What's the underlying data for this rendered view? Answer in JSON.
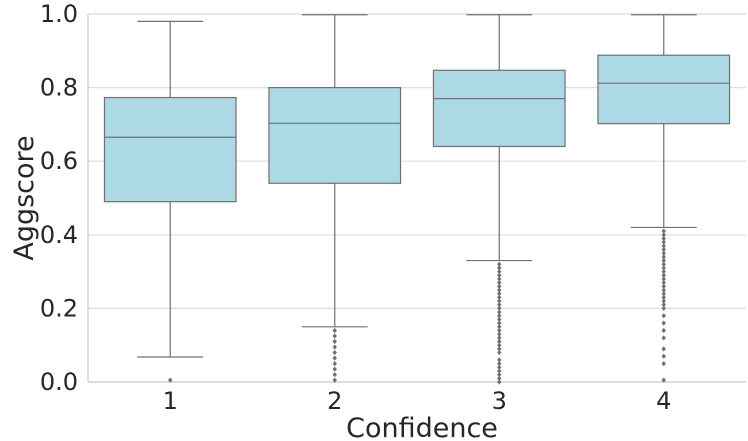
{
  "chart_data": {
    "type": "box",
    "xlabel": "Confidence",
    "ylabel": "Aggscore",
    "ylim": [
      0.0,
      1.0
    ],
    "yticks": [
      "0.0",
      "0.2",
      "0.4",
      "0.6",
      "0.8",
      "1.0"
    ],
    "grid": "horizontal",
    "box_color": "#add8e6",
    "line_color": "#707070",
    "categories": [
      "1",
      "2",
      "3",
      "4"
    ],
    "boxes": [
      {
        "category": "1",
        "whisker_low": 0.068,
        "q1": 0.49,
        "median": 0.665,
        "q3": 0.773,
        "whisker_high": 0.98,
        "outliers": [
          0.005
        ]
      },
      {
        "category": "2",
        "whisker_low": 0.15,
        "q1": 0.54,
        "median": 0.703,
        "q3": 0.8,
        "whisker_high": 0.998,
        "outliers": [
          0.005,
          0.02,
          0.035,
          0.05,
          0.065,
          0.08,
          0.095,
          0.11,
          0.125,
          0.14
        ]
      },
      {
        "category": "3",
        "whisker_low": 0.33,
        "q1": 0.64,
        "median": 0.77,
        "q3": 0.847,
        "whisker_high": 0.998,
        "outliers": [
          0.0,
          0.01,
          0.02,
          0.03,
          0.04,
          0.05,
          0.06,
          0.08,
          0.09,
          0.1,
          0.11,
          0.12,
          0.13,
          0.14,
          0.15,
          0.16,
          0.17,
          0.18,
          0.19,
          0.2,
          0.21,
          0.22,
          0.23,
          0.24,
          0.25,
          0.26,
          0.27,
          0.28,
          0.29,
          0.3,
          0.31,
          0.32
        ]
      },
      {
        "category": "4",
        "whisker_low": 0.42,
        "q1": 0.702,
        "median": 0.812,
        "q3": 0.888,
        "whisker_high": 0.998,
        "outliers": [
          0.005,
          0.05,
          0.07,
          0.09,
          0.12,
          0.14,
          0.16,
          0.18,
          0.2,
          0.21,
          0.22,
          0.23,
          0.24,
          0.25,
          0.26,
          0.27,
          0.28,
          0.29,
          0.3,
          0.31,
          0.32,
          0.33,
          0.34,
          0.35,
          0.36,
          0.37,
          0.38,
          0.39,
          0.4,
          0.41
        ]
      }
    ]
  }
}
